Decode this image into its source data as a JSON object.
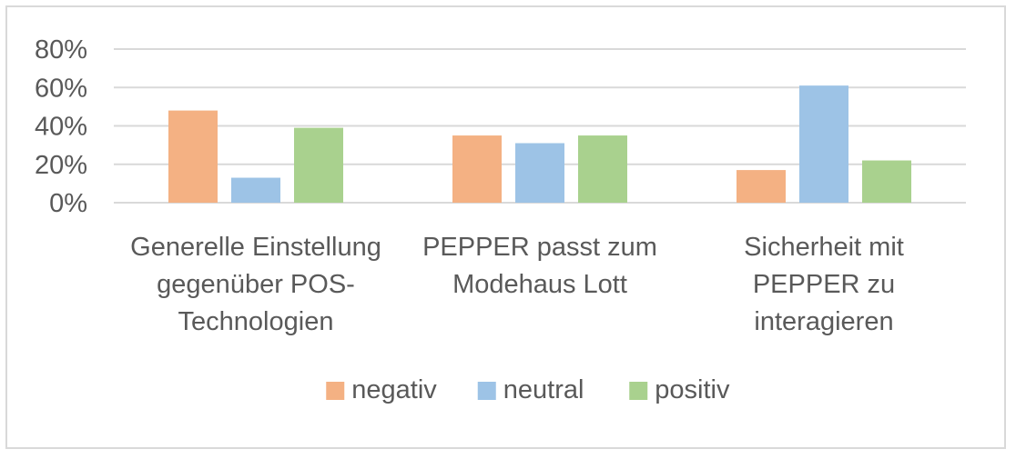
{
  "chart_data": {
    "type": "bar",
    "title": "",
    "xlabel": "",
    "ylabel": "",
    "ylim": [
      0,
      0.8
    ],
    "yticks": [
      "0%",
      "20%",
      "40%",
      "60%",
      "80%"
    ],
    "ytick_values": [
      0,
      0.2,
      0.4,
      0.6,
      0.8
    ],
    "grid": true,
    "legend_position": "bottom",
    "categories": [
      [
        "Generelle Einstellung",
        "gegenüber POS-",
        "Technologien"
      ],
      [
        "PEPPER passt zum",
        "Modehaus Lott"
      ],
      [
        "Sicherheit mit",
        "PEPPER zu",
        "interagieren"
      ]
    ],
    "series": [
      {
        "name": "negativ",
        "color": "#f4b183",
        "values": [
          0.48,
          0.35,
          0.17
        ]
      },
      {
        "name": "neutral",
        "color": "#9dc3e6",
        "values": [
          0.13,
          0.31,
          0.61
        ]
      },
      {
        "name": "positiv",
        "color": "#a9d18e",
        "values": [
          0.39,
          0.35,
          0.22
        ]
      }
    ],
    "gridline_color": "#d9d9d9"
  }
}
